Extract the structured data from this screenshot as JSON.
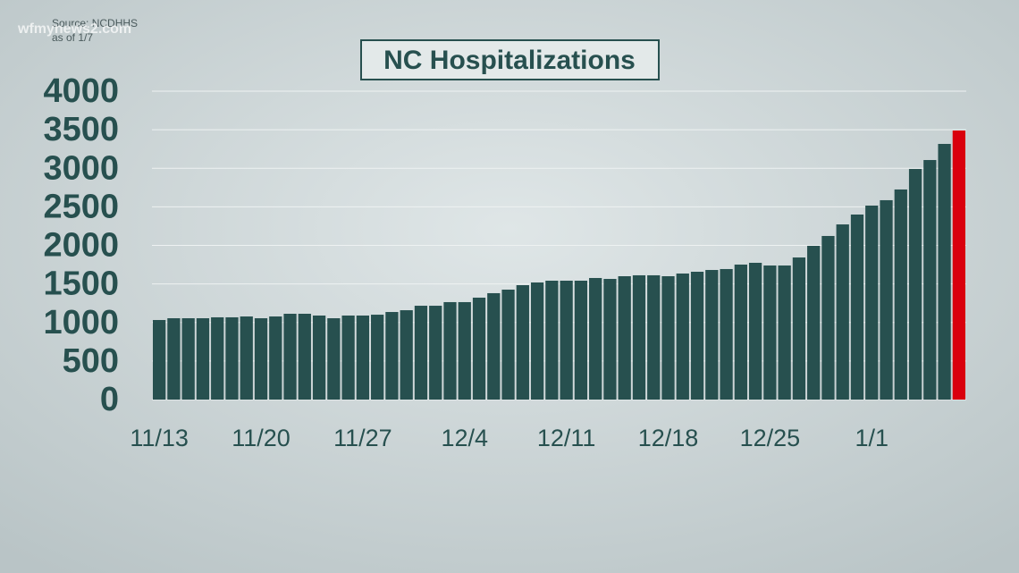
{
  "chart_data": {
    "type": "bar",
    "title": "NC Hospitalizations",
    "source": "Source: NCDHHS",
    "note": "as of 1/7",
    "watermark": "wfmynews2.com",
    "categories": [
      "11/13",
      null,
      null,
      null,
      null,
      null,
      null,
      "11/20",
      null,
      null,
      null,
      null,
      null,
      null,
      "11/27",
      null,
      null,
      null,
      null,
      null,
      null,
      "12/4",
      null,
      null,
      null,
      null,
      null,
      null,
      "12/11",
      null,
      null,
      null,
      null,
      null,
      null,
      "12/18",
      null,
      null,
      null,
      null,
      null,
      null,
      "12/25",
      null,
      null,
      null,
      null,
      null,
      null,
      "1/1",
      null,
      null,
      null,
      null,
      null,
      null
    ],
    "values": [
      1032,
      1055,
      1055,
      1055,
      1067,
      1067,
      1078,
      1055,
      1078,
      1113,
      1113,
      1090,
      1055,
      1090,
      1090,
      1101,
      1136,
      1159,
      1217,
      1217,
      1264,
      1264,
      1322,
      1380,
      1426,
      1484,
      1519,
      1542,
      1542,
      1542,
      1577,
      1565,
      1600,
      1612,
      1612,
      1600,
      1635,
      1658,
      1681,
      1693,
      1751,
      1774,
      1739,
      1739,
      1843,
      1994,
      2122,
      2272,
      2400,
      2516,
      2586,
      2725,
      2991,
      3107,
      3316,
      3490
    ],
    "colors": [
      "#27504f",
      "#27504f",
      "#27504f",
      "#27504f",
      "#27504f",
      "#27504f",
      "#27504f",
      "#27504f",
      "#27504f",
      "#27504f",
      "#27504f",
      "#27504f",
      "#27504f",
      "#27504f",
      "#27504f",
      "#27504f",
      "#27504f",
      "#27504f",
      "#27504f",
      "#27504f",
      "#27504f",
      "#27504f",
      "#27504f",
      "#27504f",
      "#27504f",
      "#27504f",
      "#27504f",
      "#27504f",
      "#27504f",
      "#27504f",
      "#27504f",
      "#27504f",
      "#27504f",
      "#27504f",
      "#27504f",
      "#27504f",
      "#27504f",
      "#27504f",
      "#27504f",
      "#27504f",
      "#27504f",
      "#27504f",
      "#27504f",
      "#27504f",
      "#27504f",
      "#27504f",
      "#27504f",
      "#27504f",
      "#27504f",
      "#27504f",
      "#27504f",
      "#27504f",
      "#27504f",
      "#27504f",
      "#27504f",
      "#d9000d"
    ],
    "ylim": [
      0,
      4000
    ],
    "yticks": [
      0,
      500,
      1000,
      1500,
      2000,
      2500,
      3000,
      3500,
      4000
    ],
    "grid": true
  }
}
